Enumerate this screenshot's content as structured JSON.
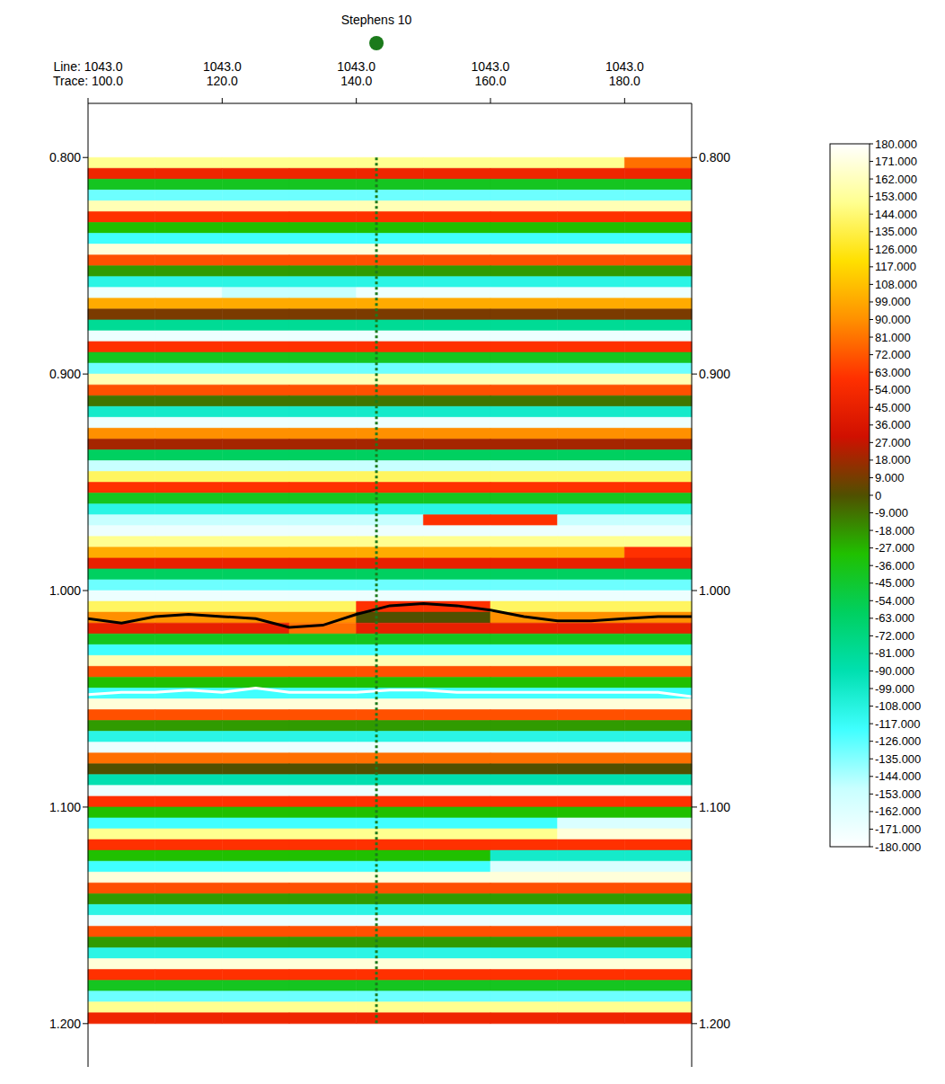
{
  "chart_data": {
    "type": "heatmap",
    "well": {
      "name": "Stephens 10",
      "trace": 143
    },
    "xlim": [
      100,
      190
    ],
    "xticks": [
      {
        "value": 100,
        "label": "Trace: 100.0"
      },
      {
        "value": 120,
        "label": "120.0"
      },
      {
        "value": 140,
        "label": "140.0"
      },
      {
        "value": 160,
        "label": "160.0"
      },
      {
        "value": 180,
        "label": "180.0"
      }
    ],
    "line_ticks": [
      {
        "value": 100,
        "label": "Line: 1043.0"
      },
      {
        "value": 120,
        "label": "1043.0"
      },
      {
        "value": 140,
        "label": "1043.0"
      },
      {
        "value": 160,
        "label": "1043.0"
      },
      {
        "value": 180,
        "label": "1043.0"
      }
    ],
    "ylim": [
      0.775,
      1.22
    ],
    "yticks": [
      {
        "value": 0.8,
        "label": "0.800"
      },
      {
        "value": 0.9,
        "label": "0.900"
      },
      {
        "value": 1,
        "label": "1.000"
      },
      {
        "value": 1.1,
        "label": "1.100"
      },
      {
        "value": 1.2,
        "label": "1.200"
      }
    ],
    "trace_bins": [
      100,
      110,
      120,
      130,
      140,
      150,
      160,
      170,
      180,
      190
    ],
    "time_bins": [
      0.8,
      0.805,
      0.81,
      0.815,
      0.82,
      0.825,
      0.83,
      0.835,
      0.84,
      0.845,
      0.85,
      0.855,
      0.86,
      0.865,
      0.87,
      0.875,
      0.88,
      0.885,
      0.89,
      0.895,
      0.9,
      0.905,
      0.91,
      0.915,
      0.92,
      0.925,
      0.93,
      0.935,
      0.94,
      0.945,
      0.95,
      0.955,
      0.96,
      0.965,
      0.97,
      0.975,
      0.98,
      0.985,
      0.99,
      0.995,
      1.0,
      1.005,
      1.01,
      1.015,
      1.02,
      1.025,
      1.03,
      1.035,
      1.04,
      1.045,
      1.05,
      1.055,
      1.06,
      1.065,
      1.07,
      1.075,
      1.08,
      1.085,
      1.09,
      1.095,
      1.1,
      1.105,
      1.11,
      1.115,
      1.12,
      1.125,
      1.13,
      1.135,
      1.14,
      1.145,
      1.15,
      1.155,
      1.16,
      1.165,
      1.17,
      1.175,
      1.18,
      1.185,
      1.19,
      1.195,
      1.2
    ],
    "phase": [
      [
        150,
        150,
        150,
        150,
        150,
        150,
        150,
        150,
        80
      ],
      [
        50,
        50,
        50,
        50,
        50,
        50,
        50,
        50,
        50
      ],
      [
        -40,
        -40,
        -40,
        -40,
        -40,
        -40,
        -40,
        -40,
        -40
      ],
      [
        -130,
        -130,
        -130,
        -130,
        -130,
        -130,
        -130,
        -130,
        -130
      ],
      [
        160,
        160,
        160,
        160,
        160,
        160,
        160,
        160,
        160
      ],
      [
        60,
        60,
        60,
        60,
        60,
        60,
        60,
        60,
        60
      ],
      [
        -30,
        -30,
        -30,
        -30,
        -30,
        -30,
        -30,
        -30,
        -30
      ],
      [
        -120,
        -120,
        -120,
        -120,
        -120,
        -120,
        -120,
        -120,
        -120
      ],
      [
        170,
        170,
        170,
        170,
        170,
        170,
        170,
        170,
        170
      ],
      [
        70,
        70,
        70,
        70,
        70,
        70,
        70,
        70,
        70
      ],
      [
        -20,
        -20,
        -20,
        -20,
        -20,
        -20,
        -20,
        -20,
        -20
      ],
      [
        -110,
        -110,
        -110,
        -110,
        -110,
        -110,
        -110,
        -110,
        -110
      ],
      [
        -170,
        -170,
        -150,
        -150,
        -170,
        -170,
        -170,
        -170,
        -170
      ],
      [
        100,
        100,
        100,
        100,
        100,
        100,
        100,
        100,
        100
      ],
      [
        10,
        10,
        10,
        10,
        10,
        10,
        10,
        10,
        10
      ],
      [
        -80,
        -80,
        -80,
        -80,
        -80,
        -80,
        -80,
        -80,
        -80
      ],
      [
        -170,
        -170,
        -170,
        -170,
        -170,
        -170,
        -170,
        -170,
        -170
      ],
      [
        60,
        60,
        60,
        60,
        60,
        60,
        60,
        60,
        60
      ],
      [
        -40,
        -40,
        -40,
        -40,
        -40,
        -40,
        -40,
        -40,
        -40
      ],
      [
        -130,
        -130,
        -130,
        -130,
        -130,
        -130,
        -130,
        -130,
        -130
      ],
      [
        160,
        160,
        160,
        160,
        160,
        160,
        160,
        160,
        160
      ],
      [
        70,
        70,
        70,
        70,
        70,
        70,
        70,
        70,
        70
      ],
      [
        -10,
        -10,
        -10,
        -10,
        -10,
        -10,
        -10,
        -10,
        -10
      ],
      [
        -100,
        -100,
        -100,
        -100,
        -100,
        -100,
        -100,
        -100,
        -100
      ],
      [
        -170,
        -170,
        -170,
        -170,
        -170,
        -170,
        -170,
        -170,
        -170
      ],
      [
        90,
        90,
        90,
        90,
        90,
        90,
        90,
        90,
        90
      ],
      [
        20,
        20,
        20,
        20,
        20,
        20,
        20,
        20,
        20
      ],
      [
        -60,
        -60,
        -60,
        -60,
        -60,
        -60,
        -60,
        -60,
        -60
      ],
      [
        -150,
        -150,
        -150,
        -150,
        -150,
        -150,
        -150,
        -150,
        -150
      ],
      [
        140,
        140,
        140,
        140,
        140,
        140,
        140,
        140,
        140
      ],
      [
        60,
        60,
        60,
        60,
        60,
        60,
        60,
        60,
        60
      ],
      [
        -40,
        -40,
        -40,
        -40,
        -40,
        -40,
        -40,
        -40,
        -40
      ],
      [
        -110,
        -110,
        -110,
        -110,
        -110,
        -110,
        -110,
        -110,
        -110
      ],
      [
        -150,
        -150,
        -150,
        -150,
        -150,
        60,
        60,
        -150,
        -150
      ],
      [
        -170,
        -170,
        -170,
        -170,
        -170,
        -170,
        -170,
        -170,
        -170
      ],
      [
        150,
        150,
        150,
        150,
        150,
        150,
        150,
        150,
        150
      ],
      [
        100,
        100,
        100,
        100,
        100,
        100,
        100,
        100,
        60
      ],
      [
        45,
        45,
        45,
        45,
        45,
        45,
        45,
        45,
        45
      ],
      [
        -60,
        -60,
        -60,
        -60,
        -60,
        -60,
        -60,
        -60,
        -60
      ],
      [
        -130,
        -130,
        -130,
        -130,
        -130,
        -130,
        -130,
        -130,
        -130
      ],
      [
        -170,
        -170,
        -170,
        -170,
        -170,
        -170,
        -170,
        -170,
        -170
      ],
      [
        140,
        140,
        140,
        140,
        60,
        60,
        140,
        140,
        140
      ],
      [
        90,
        90,
        90,
        90,
        0,
        0,
        90,
        90,
        90
      ],
      [
        45,
        45,
        45,
        80,
        45,
        45,
        45,
        45,
        45
      ],
      [
        -40,
        -40,
        -40,
        -40,
        -40,
        -40,
        -40,
        -40,
        -40
      ],
      [
        -120,
        -120,
        -120,
        -120,
        -120,
        -120,
        -120,
        -120,
        -120
      ],
      [
        160,
        160,
        160,
        160,
        160,
        160,
        160,
        160,
        160
      ],
      [
        70,
        70,
        70,
        70,
        70,
        70,
        70,
        70,
        70
      ],
      [
        -30,
        -30,
        -30,
        -30,
        -30,
        -30,
        -30,
        -30,
        -30
      ],
      [
        -120,
        -120,
        -120,
        -120,
        -120,
        -120,
        -120,
        -120,
        -120
      ],
      [
        170,
        170,
        170,
        170,
        170,
        170,
        170,
        170,
        170
      ],
      [
        70,
        70,
        70,
        70,
        70,
        70,
        70,
        70,
        70
      ],
      [
        -20,
        -20,
        -20,
        -20,
        -20,
        -20,
        -20,
        -20,
        -20
      ],
      [
        -110,
        -110,
        -110,
        -110,
        -110,
        -110,
        -110,
        -110,
        -110
      ],
      [
        -170,
        -170,
        -170,
        -170,
        -170,
        -170,
        -170,
        -170,
        -170
      ],
      [
        80,
        80,
        80,
        80,
        80,
        80,
        80,
        80,
        80
      ],
      [
        0,
        0,
        0,
        0,
        0,
        0,
        0,
        0,
        0
      ],
      [
        -90,
        -90,
        -90,
        -90,
        -90,
        -90,
        -90,
        -90,
        -90
      ],
      [
        -170,
        -170,
        -170,
        -170,
        -170,
        -170,
        -170,
        -170,
        -170
      ],
      [
        60,
        60,
        60,
        60,
        60,
        60,
        60,
        60,
        60
      ],
      [
        -30,
        -30,
        -30,
        -30,
        -30,
        -30,
        -30,
        -30,
        -30
      ],
      [
        -120,
        -120,
        -120,
        -120,
        -120,
        -120,
        -120,
        -160,
        -160
      ],
      [
        150,
        150,
        150,
        150,
        150,
        150,
        150,
        170,
        170
      ],
      [
        60,
        60,
        60,
        60,
        60,
        60,
        60,
        60,
        60
      ],
      [
        -30,
        -30,
        -30,
        -30,
        -30,
        -30,
        -100,
        -100,
        -100
      ],
      [
        -120,
        -120,
        -120,
        -120,
        -120,
        -120,
        -160,
        -160,
        -160
      ],
      [
        170,
        170,
        170,
        170,
        170,
        170,
        170,
        170,
        170
      ],
      [
        70,
        70,
        70,
        70,
        70,
        70,
        70,
        70,
        70
      ],
      [
        -20,
        -20,
        -20,
        -20,
        -20,
        -20,
        -20,
        -20,
        -20
      ],
      [
        -110,
        -110,
        -110,
        -110,
        -110,
        -110,
        -110,
        -110,
        -110
      ],
      [
        -170,
        -170,
        -170,
        -170,
        -170,
        -170,
        -170,
        -170,
        -170
      ],
      [
        70,
        70,
        70,
        70,
        70,
        70,
        70,
        70,
        70
      ],
      [
        -20,
        -20,
        -20,
        -20,
        -20,
        -20,
        -20,
        -20,
        -20
      ],
      [
        -110,
        -110,
        -110,
        -110,
        -110,
        -110,
        -110,
        -110,
        -110
      ],
      [
        170,
        170,
        170,
        170,
        170,
        170,
        170,
        170,
        170
      ],
      [
        60,
        60,
        60,
        60,
        60,
        60,
        60,
        60,
        60
      ],
      [
        -40,
        -40,
        -40,
        -40,
        -40,
        -40,
        -40,
        -40,
        -40
      ],
      [
        -130,
        -130,
        -130,
        -130,
        -130,
        -130,
        -130,
        -130,
        -130
      ],
      [
        150,
        150,
        150,
        150,
        150,
        150,
        150,
        150,
        150
      ],
      [
        50,
        50,
        50,
        50,
        50,
        50,
        50,
        50,
        50
      ]
    ],
    "x": [
      100,
      105,
      110,
      115,
      120,
      125,
      130,
      135,
      140,
      145,
      150,
      155,
      160,
      165,
      170,
      175,
      180,
      185,
      190
    ],
    "series": [
      {
        "color": "#000000",
        "values": [
          1.013,
          1.015,
          1.012,
          1.011,
          1.012,
          1.013,
          1.017,
          1.016,
          1.011,
          1.007,
          1.006,
          1.007,
          1.009,
          1.012,
          1.014,
          1.014,
          1.013,
          1.012,
          1.012
        ]
      },
      {
        "color": "#ffffff",
        "values": [
          1.048,
          1.047,
          1.047,
          1.046,
          1.047,
          1.045,
          1.047,
          1.047,
          1.047,
          1.046,
          1.046,
          1.047,
          1.047,
          1.047,
          1.047,
          1.047,
          1.047,
          1.047,
          1.049
        ]
      }
    ],
    "colorbar": {
      "range": [
        -180,
        180
      ],
      "colors": [
        "#ffffff",
        "#c8ffff",
        "#40ffff",
        "#00e0b0",
        "#00d060",
        "#20c000",
        "#505000",
        "#d01000",
        "#ff3000",
        "#ff9000",
        "#ffe000",
        "#ffff90",
        "#ffffff"
      ],
      "ticks": [
        {
          "value": 180,
          "label": "180.000"
        },
        {
          "value": 171,
          "label": "171.000"
        },
        {
          "value": 162,
          "label": "162.000"
        },
        {
          "value": 153,
          "label": "153.000"
        },
        {
          "value": 144,
          "label": "144.000"
        },
        {
          "value": 135,
          "label": "135.000"
        },
        {
          "value": 126,
          "label": "126.000"
        },
        {
          "value": 117,
          "label": "117.000"
        },
        {
          "value": 108,
          "label": "108.000"
        },
        {
          "value": 99,
          "label": "99.000"
        },
        {
          "value": 90,
          "label": "90.000"
        },
        {
          "value": 81,
          "label": "81.000"
        },
        {
          "value": 72,
          "label": "72.000"
        },
        {
          "value": 63,
          "label": "63.000"
        },
        {
          "value": 54,
          "label": "54.000"
        },
        {
          "value": 45,
          "label": "45.000"
        },
        {
          "value": 36,
          "label": "36.000"
        },
        {
          "value": 27,
          "label": "27.000"
        },
        {
          "value": 18,
          "label": "18.000"
        },
        {
          "value": 9,
          "label": "9.000"
        },
        0,
        {
          "value": -9,
          "label": "-9.000"
        },
        {
          "value": -18,
          "label": "-18.000"
        },
        {
          "value": -27,
          "label": "-27.000"
        },
        {
          "value": -36,
          "label": "-36.000"
        },
        {
          "value": -45,
          "label": "-45.000"
        },
        {
          "value": -54,
          "label": "-54.000"
        },
        {
          "value": -63,
          "label": "-63.000"
        },
        {
          "value": -72,
          "label": "-72.000"
        },
        {
          "value": -81,
          "label": "-81.000"
        },
        {
          "value": -90,
          "label": "-90.000"
        },
        {
          "value": -99,
          "label": "-99.000"
        },
        {
          "value": -108,
          "label": "-108.000"
        },
        {
          "value": -117,
          "label": "-117.000"
        },
        {
          "value": -126,
          "label": "-126.000"
        },
        {
          "value": -135,
          "label": "-135.000"
        },
        {
          "value": -144,
          "label": "-144.000"
        },
        {
          "value": -153,
          "label": "-153.000"
        },
        {
          "value": -162,
          "label": "-162.000"
        },
        {
          "value": -171,
          "label": "-171.000"
        },
        {
          "value": -180,
          "label": "-180.000"
        }
      ]
    }
  }
}
